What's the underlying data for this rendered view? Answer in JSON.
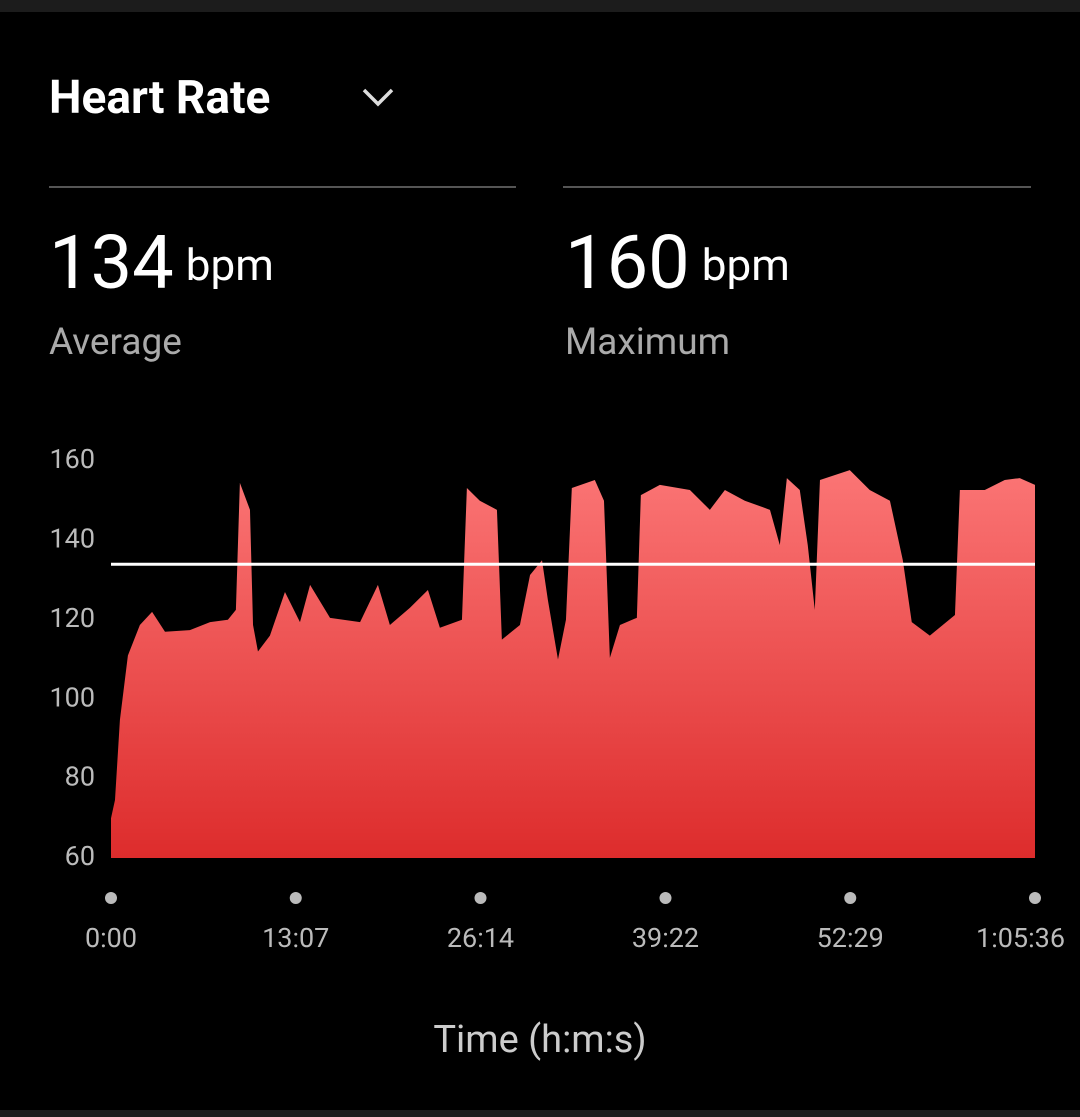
{
  "header": {
    "title": "Heart Rate"
  },
  "stats": [
    {
      "value": 134,
      "unit": "bpm",
      "label": "Average"
    },
    {
      "value": 160,
      "unit": "bpm",
      "label": "Maximum"
    }
  ],
  "chart_data": {
    "type": "area",
    "x_label": "Time (h:m:s)",
    "colors": [
      "#fb7575",
      "#dd2c2c"
    ],
    "reference_line_color": "#ffffff",
    "x": [
      0,
      17,
      38,
      72,
      123,
      175,
      230,
      336,
      422,
      498,
      532,
      549,
      592,
      605,
      626,
      677,
      741,
      805,
      848,
      933,
      1061,
      1137,
      1188,
      1273,
      1350,
      1401,
      1495,
      1516,
      1571,
      1644,
      1665,
      1742,
      1785,
      1836,
      1861,
      1904,
      1938,
      1963,
      2061,
      2100,
      2125,
      2168,
      2240,
      2257,
      2338,
      2466,
      2551,
      2615,
      2700,
      2807,
      2849,
      2879,
      2934,
      2968,
      2998,
      3020,
      3147,
      3232,
      3318,
      3373,
      3411,
      3488,
      3595,
      3616,
      3722,
      3807,
      3871,
      3936
    ],
    "values": [
      70,
      74.6,
      94.8,
      111,
      118.7,
      122,
      117,
      117.4,
      119.4,
      120,
      122.5,
      154.5,
      147.7,
      118.7,
      112,
      116,
      127,
      119.4,
      128.8,
      120.5,
      119.4,
      128.8,
      118.7,
      123,
      127.5,
      118,
      120,
      153.2,
      150,
      147.7,
      115,
      118.7,
      131.3,
      135,
      125,
      110,
      120,
      153.2,
      155.2,
      150,
      110.4,
      118.7,
      120.5,
      151.4,
      154,
      152.7,
      147.7,
      152.7,
      150,
      147.7,
      138.8,
      155.7,
      152.7,
      138.8,
      122.5,
      155.2,
      157.7,
      152.7,
      150,
      135,
      119.4,
      116,
      121.2,
      152.7,
      152.7,
      155.2,
      155.7,
      154
    ],
    "xlim": [
      0,
      3936
    ],
    "xticks": [
      {
        "value": 0,
        "label": "0:00"
      },
      {
        "value": 787,
        "label": "13:07"
      },
      {
        "value": 1574,
        "label": "26:14"
      },
      {
        "value": 2362,
        "label": "39:22"
      },
      {
        "value": 3149,
        "label": "52:29"
      },
      {
        "value": 3936,
        "label": "1:05:36"
      }
    ],
    "ylim": [
      60,
      160
    ],
    "yticks": [
      60,
      80,
      100,
      120,
      140,
      160
    ]
  }
}
